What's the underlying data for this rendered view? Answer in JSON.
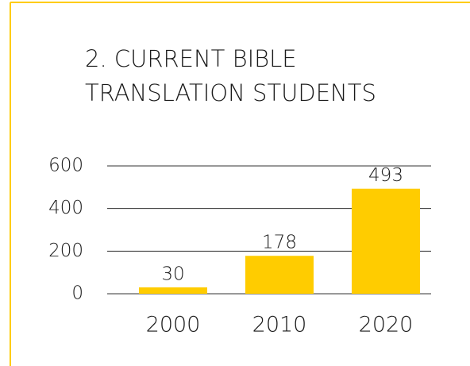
{
  "chart_data": {
    "type": "bar",
    "title": [
      "2. CURRENT BIBLE",
      "TRANSLATION STUDENTS"
    ],
    "categories": [
      "2000",
      "2010",
      "2020"
    ],
    "values": [
      30,
      178,
      493
    ],
    "color": "#ffcc00",
    "ylim": [
      0,
      600
    ],
    "yticks": [
      0,
      200,
      400,
      600
    ],
    "grid": true
  }
}
